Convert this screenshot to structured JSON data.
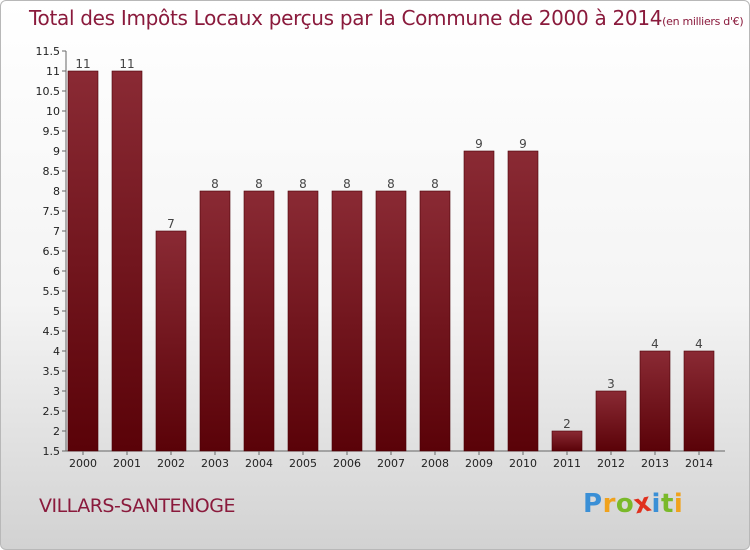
{
  "title": {
    "main": "Total des Impôts Locaux perçus par la Commune de 2000 à 2014",
    "unit": "(en milliers d'€)"
  },
  "commune": "VILLARS-SANTENOGE",
  "logo": {
    "text": "Proxiti",
    "letters": [
      "P",
      "r",
      "o",
      "x",
      "i",
      "t",
      "i"
    ],
    "colors": [
      "#3a8fd6",
      "#f0a21c",
      "#7ab92a",
      "#e0301e",
      "#3a8fd6",
      "#7ab92a",
      "#f0a21c"
    ]
  },
  "colors": {
    "bar_top": "#8a2a34",
    "bar_bottom": "#5a0208",
    "title": "#8a1a3c"
  },
  "chart_data": {
    "type": "bar",
    "title": "Total des Impôts Locaux perçus par la Commune de 2000 à 2014",
    "xlabel": "",
    "ylabel": "en milliers d'€",
    "categories": [
      "2000",
      "2001",
      "2002",
      "2003",
      "2004",
      "2005",
      "2006",
      "2007",
      "2008",
      "2009",
      "2010",
      "2011",
      "2012",
      "2013",
      "2014"
    ],
    "values": [
      11,
      11,
      7,
      8,
      8,
      8,
      8,
      8,
      8,
      9,
      9,
      2,
      3,
      4,
      4
    ],
    "data_labels": [
      "11",
      "11",
      "7",
      "8",
      "8",
      "8",
      "8",
      "8",
      "8",
      "9",
      "9",
      "2",
      "3",
      "4",
      "4"
    ],
    "ylim": [
      1.5,
      11.5
    ],
    "yticks": [
      1.5,
      2,
      2.5,
      3,
      3.5,
      4,
      4.5,
      5,
      5.5,
      6,
      6.5,
      7,
      7.5,
      8,
      8.5,
      9,
      9.5,
      10,
      10.5,
      11,
      11.5
    ],
    "ytick_labels": [
      "1.5",
      "2",
      "2.5",
      "3",
      "3.5",
      "4",
      "4.5",
      "5",
      "5.5",
      "6",
      "6.5",
      "7",
      "7.5",
      "8",
      "8.5",
      "9",
      "9.5",
      "10",
      "10.5",
      "11",
      "11.5"
    ],
    "grid": false
  }
}
